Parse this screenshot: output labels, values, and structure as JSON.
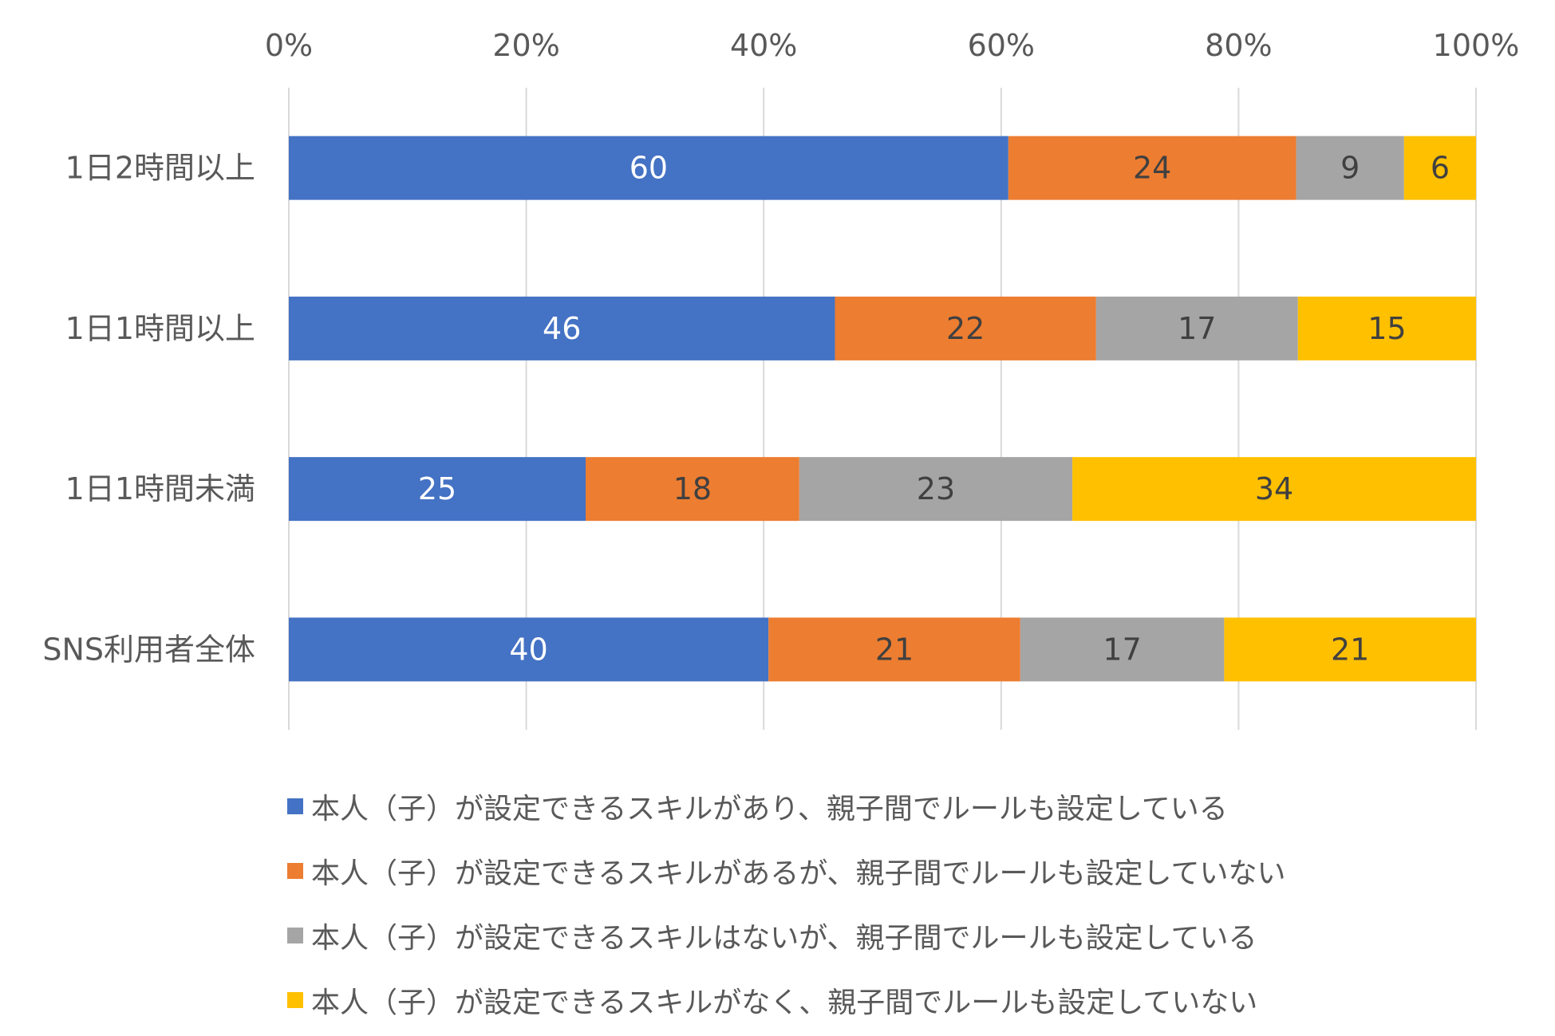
{
  "chart_data": {
    "type": "bar",
    "orientation": "horizontal",
    "stacked": "percent",
    "categories": [
      "1日2時間以上",
      "1日1時間以上",
      "1日1時間未満",
      "SNS利用者全体"
    ],
    "series": [
      {
        "name": "本人（子）が設定できるスキルがあり、親子間でルールも設定している",
        "color": "#4472C4",
        "label_color": "#ffffff",
        "values": [
          60,
          46,
          25,
          40
        ]
      },
      {
        "name": "本人（子）が設定できるスキルがあるが、親子間でルールも設定していない",
        "color": "#ED7D31",
        "label_color": "#404040",
        "values": [
          24,
          22,
          18,
          21
        ]
      },
      {
        "name": "本人（子）が設定できるスキルはないが、親子間でルールも設定している",
        "color": "#A5A5A5",
        "label_color": "#404040",
        "values": [
          9,
          17,
          23,
          17
        ]
      },
      {
        "name": "本人（子）が設定できるスキルがなく、親子間でルールも設定していない",
        "color": "#FFC000",
        "label_color": "#404040",
        "values": [
          6,
          15,
          34,
          21
        ]
      }
    ],
    "xticks": [
      "0%",
      "20%",
      "40%",
      "60%",
      "80%",
      "100%"
    ],
    "xlim": [
      0,
      100
    ],
    "grid": true,
    "legend_position": "bottom"
  }
}
